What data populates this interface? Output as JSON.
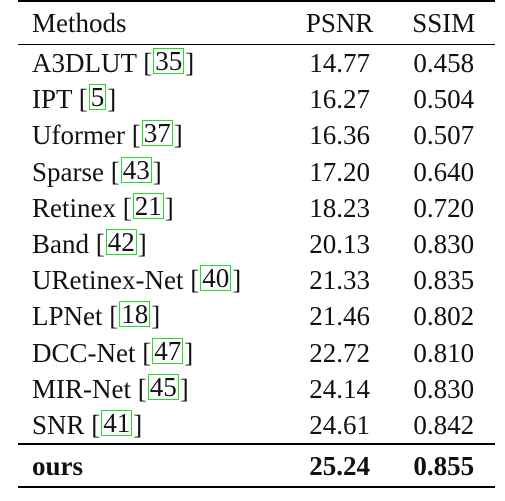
{
  "table": {
    "headers": [
      "Methods",
      "PSNR",
      "SSIM"
    ],
    "rows": [
      {
        "method": "A3DLUT",
        "cite": "35",
        "psnr": "14.77",
        "ssim": "0.458"
      },
      {
        "method": "IPT",
        "cite": "5",
        "psnr": "16.27",
        "ssim": "0.504"
      },
      {
        "method": "Uformer",
        "cite": "37",
        "psnr": "16.36",
        "ssim": "0.507"
      },
      {
        "method": "Sparse",
        "cite": "43",
        "psnr": "17.20",
        "ssim": "0.640"
      },
      {
        "method": "Retinex",
        "cite": "21",
        "psnr": "18.23",
        "ssim": "0.720"
      },
      {
        "method": "Band",
        "cite": "42",
        "psnr": "20.13",
        "ssim": "0.830"
      },
      {
        "method": "URetinex-Net",
        "cite": "40",
        "psnr": "21.33",
        "ssim": "0.835"
      },
      {
        "method": "LPNet",
        "cite": "18",
        "psnr": "21.46",
        "ssim": "0.802"
      },
      {
        "method": "DCC-Net",
        "cite": "47",
        "psnr": "22.72",
        "ssim": "0.810"
      },
      {
        "method": "MIR-Net",
        "cite": "45",
        "psnr": "24.14",
        "ssim": "0.830"
      },
      {
        "method": "SNR",
        "cite": "41",
        "psnr": "24.61",
        "ssim": "0.842"
      }
    ],
    "final_row": {
      "method": "ours",
      "psnr": "25.24",
      "ssim": "0.855"
    },
    "citation_box_color": "#22dd22"
  }
}
